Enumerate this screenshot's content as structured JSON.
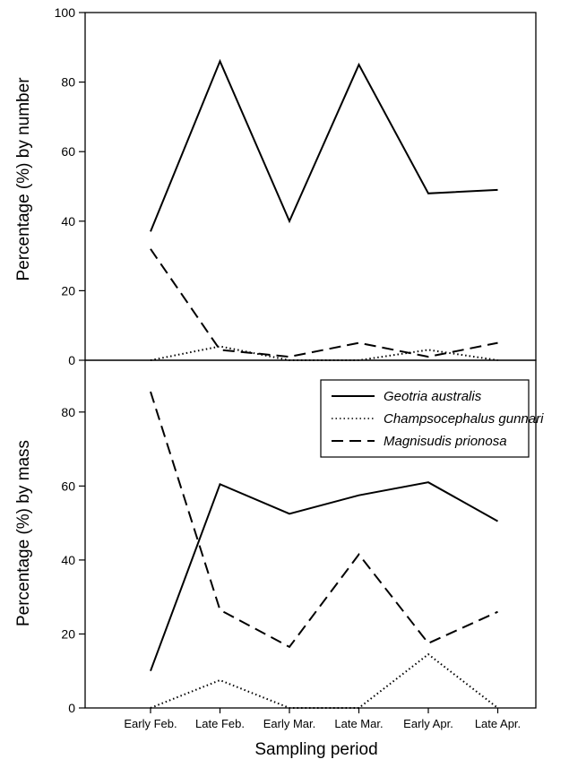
{
  "chart_data": [
    {
      "type": "line",
      "panel": "top",
      "ylabel": "Percentage (%) by number",
      "ylim": [
        0,
        100
      ],
      "yticks": [
        0,
        20,
        40,
        60,
        80,
        100
      ],
      "categories": [
        "Early Feb.",
        "Late Feb.",
        "Early Mar.",
        "Late Mar.",
        "Early Apr.",
        "Late Apr."
      ],
      "series": [
        {
          "name": "Geotria australis",
          "style": "solid",
          "values": [
            37,
            86,
            40,
            85,
            48,
            49
          ]
        },
        {
          "name": "Champsocephalus gunnari",
          "style": "dotted",
          "values": [
            0,
            4,
            0,
            0,
            3,
            0
          ]
        },
        {
          "name": "Magnisudis prionosa",
          "style": "dashed",
          "values": [
            32,
            3,
            1,
            5,
            1,
            5
          ]
        }
      ]
    },
    {
      "type": "line",
      "panel": "bottom",
      "ylabel": "Percentage (%) by mass",
      "xlabel": "Sampling period",
      "ylim": [
        0,
        94
      ],
      "yticks": [
        0,
        20,
        40,
        60,
        80
      ],
      "categories": [
        "Early Feb.",
        "Late Feb.",
        "Early Mar.",
        "Late Mar.",
        "Early Apr.",
        "Late Apr."
      ],
      "legend_position": "top-right",
      "series": [
        {
          "name": "Geotria australis",
          "style": "solid",
          "values": [
            10,
            60.5,
            52.5,
            57.5,
            61,
            50.5
          ]
        },
        {
          "name": "Champsocephalus gunnari",
          "style": "dotted",
          "values": [
            0,
            7.5,
            0,
            0,
            14.5,
            0
          ]
        },
        {
          "name": "Magnisudis prionosa",
          "style": "dashed",
          "values": [
            85.5,
            26.5,
            16.5,
            41.5,
            17.5,
            26
          ]
        }
      ]
    }
  ]
}
